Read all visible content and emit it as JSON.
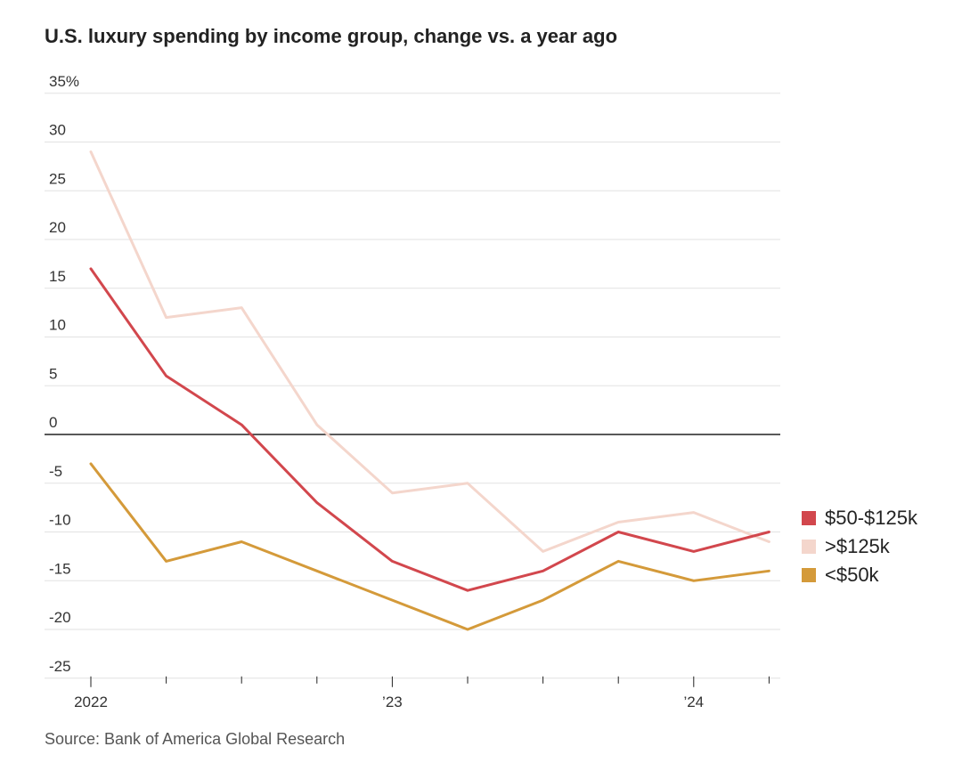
{
  "chart_data": {
    "type": "line",
    "title": "U.S. luxury spending by income group, change vs. a year ago",
    "source": "Source: Bank of America Global Research",
    "ylim": [
      -25,
      35
    ],
    "yticks": [
      35,
      30,
      25,
      20,
      15,
      10,
      5,
      0,
      -5,
      -10,
      -15,
      -20,
      -25
    ],
    "ytick_labels": [
      "35%",
      "30",
      "25",
      "20",
      "15",
      "10",
      "5",
      "0",
      "-5",
      "-10",
      "-15",
      "-20",
      "-25"
    ],
    "x": [
      "2022 Q1",
      "2022 Q2",
      "2022 Q3",
      "2022 Q4",
      "2023 Q1",
      "2023 Q2",
      "2023 Q3",
      "2023 Q4",
      "2024 Q1",
      "2024 Q2"
    ],
    "xtick_labels": [
      {
        "index": 0,
        "label": "2022"
      },
      {
        "index": 4,
        "label": "’23"
      },
      {
        "index": 8,
        "label": "’24"
      }
    ],
    "grid": true,
    "legend_position": "right",
    "series": [
      {
        "name": "$50-$125k",
        "color": "#d2474d",
        "values": [
          17,
          6,
          1,
          -7,
          -13,
          -16,
          -14,
          -10,
          -12,
          -10
        ]
      },
      {
        "name": ">$125k",
        "color": "#f4d6cc",
        "values": [
          29,
          12,
          13,
          1,
          -6,
          -5,
          -12,
          -9,
          -8,
          -11
        ]
      },
      {
        "name": "<$50k",
        "color": "#d49a3a",
        "values": [
          -3,
          -13,
          -11,
          -14,
          -17,
          -20,
          -17,
          -13,
          -15,
          -14
        ]
      }
    ]
  }
}
